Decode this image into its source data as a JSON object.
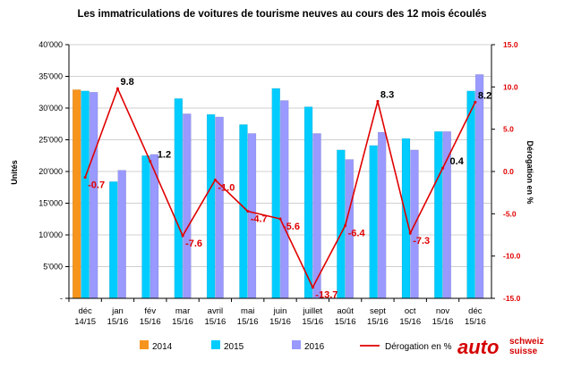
{
  "chart_data": {
    "type": "bar",
    "title": "Les immatriculations de voitures de tourisme neuves au cours des 12 mois écoulés",
    "ylabel": "Unités",
    "y2label": "Dérogation en %",
    "ylim": [
      0,
      40000
    ],
    "y2lim": [
      -15.0,
      15.0
    ],
    "y_ticks": [
      "-",
      "5'000",
      "10'000",
      "15'000",
      "20'000",
      "25'000",
      "30'000",
      "35'000",
      "40'000"
    ],
    "y2_ticks": [
      "-15.0",
      "-10.0",
      "-5.0",
      "0.0",
      "5.0",
      "10.0",
      "15.0"
    ],
    "categories": [
      [
        "déc",
        "14/15"
      ],
      [
        "jan",
        "15/16"
      ],
      [
        "fév",
        "15/16"
      ],
      [
        "mar",
        "15/16"
      ],
      [
        "avril",
        "15/16"
      ],
      [
        "mai",
        "15/16"
      ],
      [
        "juin",
        "15/16"
      ],
      [
        "juillet",
        "15/16"
      ],
      [
        "août",
        "15/16"
      ],
      [
        "sept",
        "15/16"
      ],
      [
        "oct",
        "15/16"
      ],
      [
        "nov",
        "15/16"
      ],
      [
        "déc",
        "15/16"
      ]
    ],
    "series": [
      {
        "name": "2014",
        "color": "#f7941d",
        "values": [
          32900,
          null,
          null,
          null,
          null,
          null,
          null,
          null,
          null,
          null,
          null,
          null,
          null
        ]
      },
      {
        "name": "2015",
        "color": "#00ccff",
        "values": [
          32700,
          18400,
          22500,
          31500,
          29000,
          27400,
          33100,
          30200,
          23400,
          24100,
          25200,
          26300,
          32700
        ]
      },
      {
        "name": "2016",
        "color": "#9999ff",
        "values": [
          32500,
          20200,
          22700,
          29100,
          28600,
          26000,
          31200,
          26000,
          21900,
          26200,
          23400,
          26300,
          35300
        ]
      },
      {
        "name": "Dérogation en %",
        "color": "#e00000",
        "type": "line",
        "axis": "right",
        "values": [
          -0.7,
          9.8,
          1.2,
          -7.6,
          -1.0,
          -4.7,
          -5.6,
          -13.7,
          -6.4,
          8.3,
          -7.3,
          0.4,
          8.2
        ],
        "labels": [
          "-0.7",
          "9.8",
          "1.2",
          "-7.6",
          "-1.0",
          "-4.7",
          "-5.6",
          "-13.7",
          "-6.4",
          "8.3",
          "-7.3",
          "0.4",
          "8.2"
        ],
        "label_colors": [
          "#e00000",
          "#000000",
          "#000000",
          "#e00000",
          "#e00000",
          "#e00000",
          "#e00000",
          "#e00000",
          "#e00000",
          "#000000",
          "#e00000",
          "#000000",
          "#000000"
        ]
      }
    ],
    "grid": true,
    "legend": "bottom"
  },
  "logo": {
    "main": "auto",
    "line1": "schweiz",
    "line2": "suisse"
  }
}
